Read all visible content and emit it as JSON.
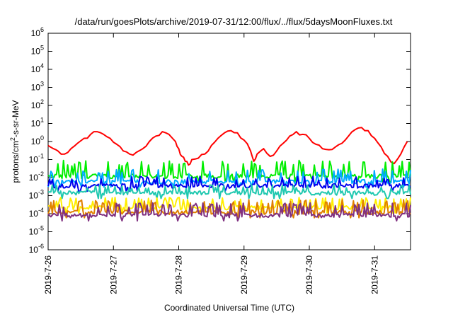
{
  "chart_data": {
    "type": "line",
    "title": "/data/run/goesPlots/archive/2019-07-31/12:00/flux/../flux/5daysMoonFluxes.txt",
    "xlabel": "Coordinated Universal Time (UTC)",
    "ylabel": "protons/cm²-s-sr-MeV",
    "ylabel_parts": {
      "pre": "protons/cm",
      "sup": "2",
      "post": "-s-sr-MeV"
    },
    "x_ticks": [
      "2019-7-26",
      "2019-7-27",
      "2019-7-28",
      "2019-7-29",
      "2019-7-30",
      "2019-7-31"
    ],
    "x_unit": "days",
    "xlim": [
      0,
      5.55
    ],
    "y_scale": "log",
    "ylim": [
      1e-06,
      1000000.0
    ],
    "y_ticks": [
      {
        "base": "10",
        "exp": "-6"
      },
      {
        "base": "10",
        "exp": "-5"
      },
      {
        "base": "10",
        "exp": "-4"
      },
      {
        "base": "10",
        "exp": "-3"
      },
      {
        "base": "10",
        "exp": "-2"
      },
      {
        "base": "10",
        "exp": "-1"
      },
      {
        "base": "10",
        "exp": "0"
      },
      {
        "base": "10",
        "exp": "1"
      },
      {
        "base": "10",
        "exp": "2"
      },
      {
        "base": "10",
        "exp": "3"
      },
      {
        "base": "10",
        "exp": "4"
      },
      {
        "base": "10",
        "exp": "5"
      },
      {
        "base": "10",
        "exp": "6"
      }
    ],
    "grid": false,
    "legend": "none",
    "series": [
      {
        "color": "#ff0000",
        "x": [
          0,
          0.08,
          0.15,
          0.25,
          0.35,
          0.45,
          0.55,
          0.65,
          0.75,
          0.85,
          0.95,
          1.05,
          1.15,
          1.25,
          1.35,
          1.45,
          1.55,
          1.65,
          1.75,
          1.85,
          1.95,
          2.0,
          2.05,
          2.1,
          2.15,
          2.2,
          2.3,
          2.4,
          2.5,
          2.6,
          2.7,
          2.8,
          2.9,
          3.0,
          3.1,
          3.15,
          3.2,
          3.3,
          3.4,
          3.5,
          3.6,
          3.7,
          3.8,
          3.9,
          4.0,
          4.1,
          4.2,
          4.3,
          4.4,
          4.5,
          4.6,
          4.7,
          4.8,
          4.9,
          5.0,
          5.1,
          5.2,
          5.3,
          5.4,
          5.5
        ],
        "y": [
          0.6,
          0.4,
          0.3,
          0.2,
          0.4,
          0.8,
          1.5,
          2.5,
          3.5,
          2.5,
          1.5,
          0.7,
          0.3,
          0.2,
          0.25,
          0.4,
          1.0,
          2.0,
          3.5,
          2.5,
          1.0,
          0.4,
          0.15,
          0.08,
          0.05,
          0.1,
          0.12,
          0.2,
          0.6,
          1.5,
          3.0,
          4.0,
          3.0,
          1.2,
          0.3,
          0.08,
          0.2,
          0.4,
          0.15,
          0.3,
          0.8,
          2.0,
          3.5,
          2.5,
          1.5,
          0.7,
          0.4,
          0.35,
          0.5,
          0.8,
          2.0,
          4.5,
          6.0,
          4.0,
          1.5,
          0.5,
          0.15,
          0.06,
          0.2,
          1.0
        ]
      },
      {
        "color": "#00ee00",
        "base": 0.012,
        "spike": 0.09,
        "period": 0.09
      },
      {
        "color": "#00aaff",
        "base": 0.006,
        "spike": 0.03,
        "period": 0.07
      },
      {
        "color": "#0000ee",
        "base": 0.0035,
        "spike": 0.012,
        "period": 0.11
      },
      {
        "color": "#20c8b0",
        "base": 0.0014,
        "spike": 0.004,
        "period": 0.13
      },
      {
        "color": "#ffee00",
        "base": 0.00022,
        "spike": 0.0008,
        "period": 0.05
      },
      {
        "color": "#e08000",
        "base": 0.00012,
        "spike": 0.0006,
        "period": 0.06
      },
      {
        "color": "#803080",
        "base": 8e-05,
        "spike": 0.0004,
        "period": 0.055
      }
    ]
  }
}
